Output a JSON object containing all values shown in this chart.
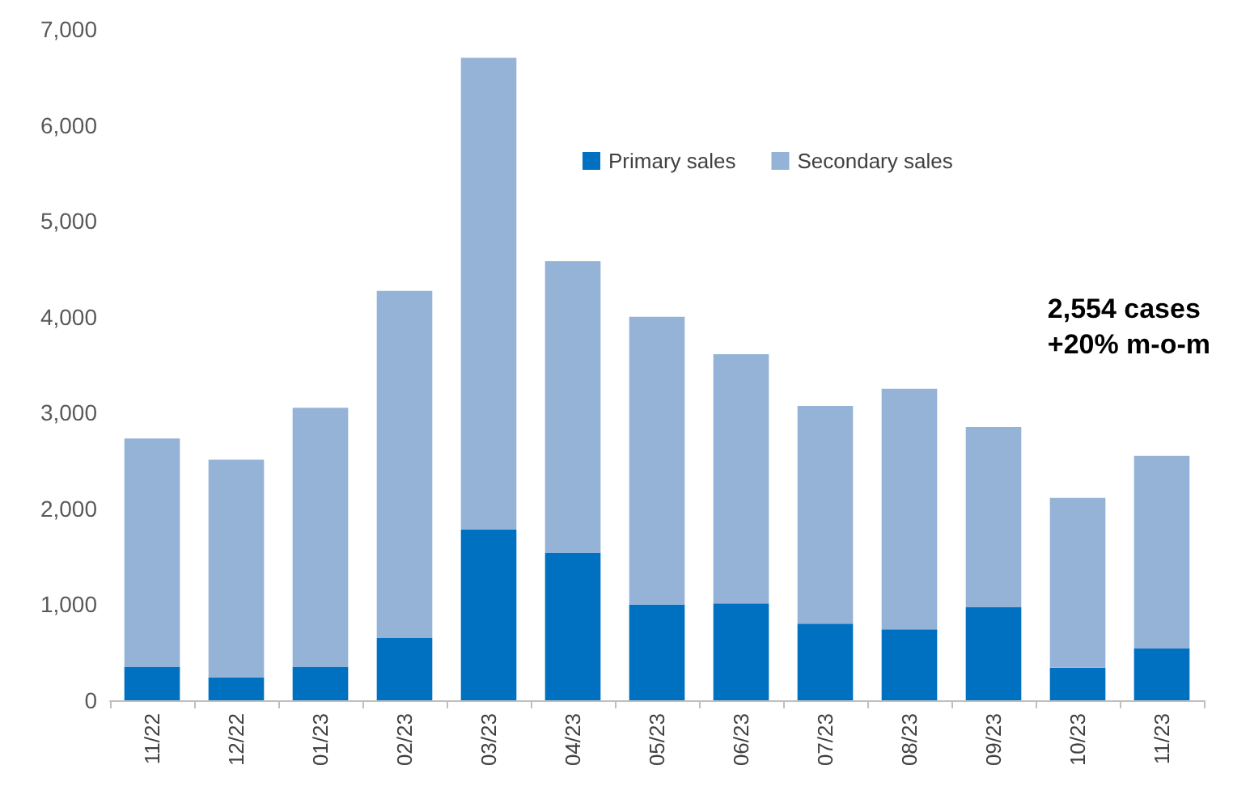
{
  "chart_data": {
    "type": "bar",
    "stacked": true,
    "categories": [
      "11/22",
      "12/22",
      "01/23",
      "02/23",
      "03/23",
      "04/23",
      "05/23",
      "06/23",
      "07/23",
      "08/23",
      "09/23",
      "10/23",
      "11/23"
    ],
    "series": [
      {
        "name": "Primary sales",
        "color": "#0070c0",
        "values": [
          350,
          240,
          350,
          650,
          1780,
          1540,
          1000,
          1010,
          800,
          740,
          970,
          340,
          540
        ]
      },
      {
        "name": "Secondary sales",
        "color": "#95b3d7",
        "values": [
          2380,
          2270,
          2700,
          3620,
          4920,
          3040,
          3000,
          2600,
          2270,
          2510,
          1880,
          1770,
          2010
        ]
      }
    ],
    "ylim": [
      0,
      7000
    ],
    "yticks": [
      0,
      {
        "value": 1000,
        "label": "1,000"
      },
      {
        "value": 2000,
        "label": "2,000"
      },
      {
        "value": 3000,
        "label": "3,000"
      },
      {
        "value": 4000,
        "label": "4,000"
      },
      {
        "value": 5000,
        "label": "5,000"
      },
      {
        "value": 6000,
        "label": "6,000"
      },
      {
        "value": 7000,
        "label": "7,000"
      }
    ],
    "grid": false,
    "legend": "top",
    "annotations": [
      "2,554 cases\n+20% m-o-m"
    ]
  }
}
